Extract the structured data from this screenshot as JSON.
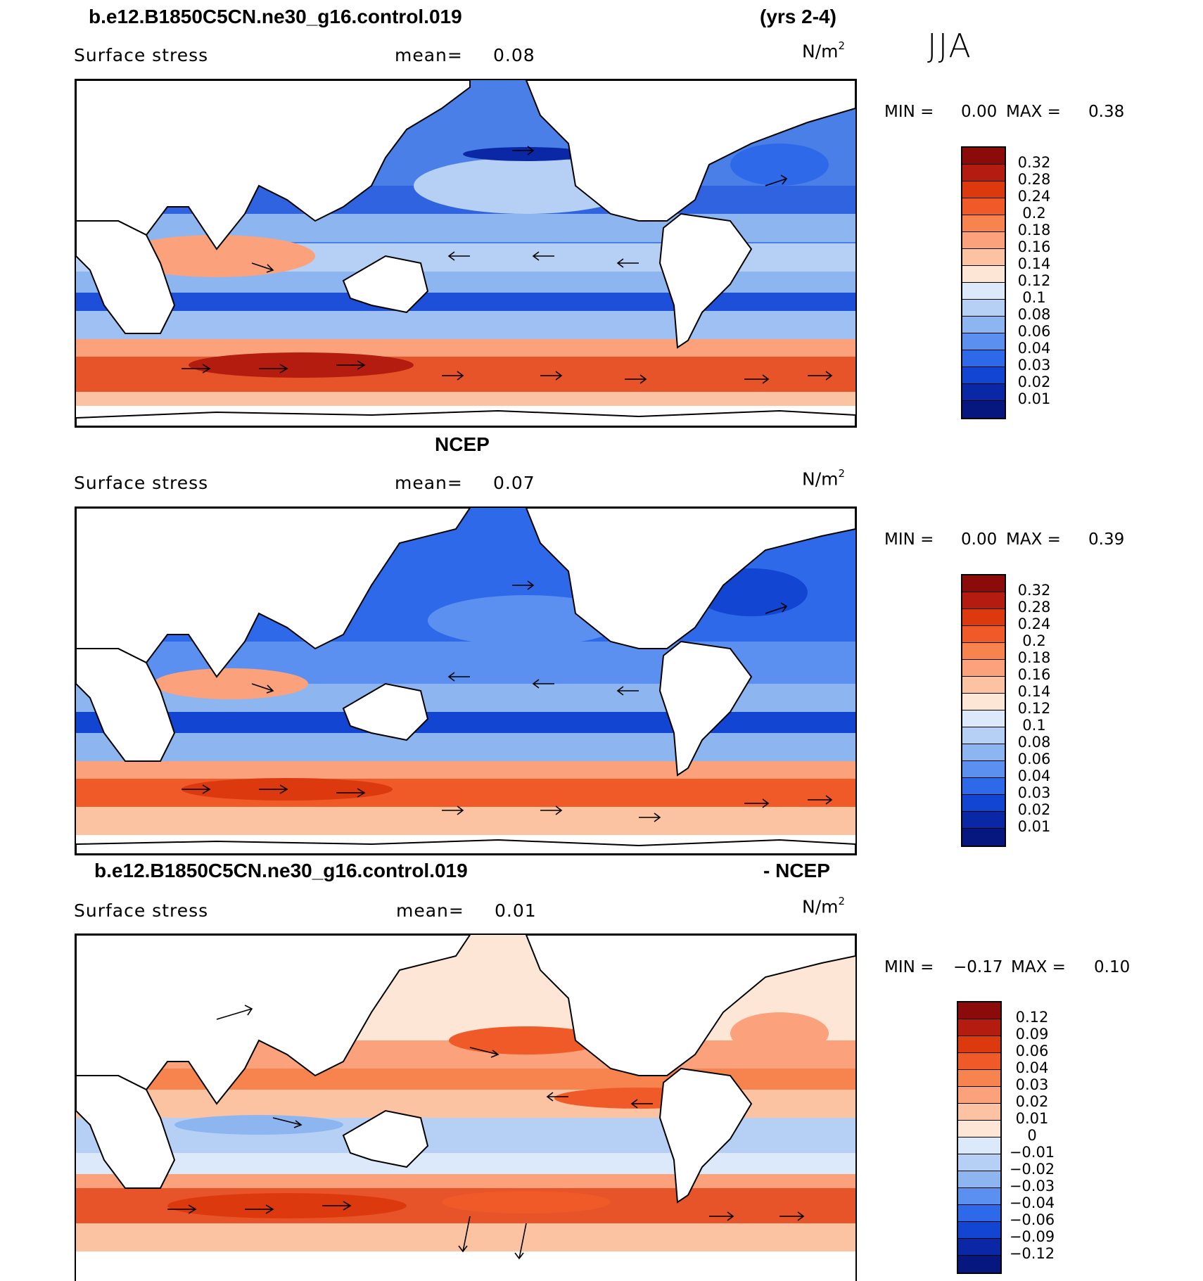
{
  "season": "JJA",
  "panels": [
    {
      "id": "model",
      "title_left": "b.e12.B1850C5CN.ne30_g16.control.019",
      "title_right": "(yrs 2-4)",
      "variable": "Surface stress",
      "mean_label": "mean=",
      "mean_value": "0.08",
      "units": "N/m",
      "units_exp": "2",
      "min_label": "MIN =",
      "min_value": "0.00",
      "max_label": "MAX =",
      "max_value": "0.38",
      "levels": [
        "0.32",
        "0.28",
        "0.24",
        "0.2",
        "0.18",
        "0.16",
        "0.14",
        "0.12",
        "0.1",
        "0.08",
        "0.06",
        "0.04",
        "0.03",
        "0.02",
        "0.01"
      ],
      "colors": [
        "#8b0a0a",
        "#b51c10",
        "#dc3a0e",
        "#f05a28",
        "#f7844f",
        "#fba27c",
        "#fcc3a3",
        "#fde6d6",
        "#dbe9fa",
        "#b6d0f5",
        "#8db5f0",
        "#5b8ff0",
        "#2e69ea",
        "#1145d2",
        "#0a28a6",
        "#061880"
      ]
    },
    {
      "id": "obs",
      "title_left": "NCEP",
      "variable": "Surface stress",
      "mean_label": "mean=",
      "mean_value": "0.07",
      "units": "N/m",
      "units_exp": "2",
      "min_label": "MIN =",
      "min_value": "0.00",
      "max_label": "MAX =",
      "max_value": "0.39",
      "levels": [
        "0.32",
        "0.28",
        "0.24",
        "0.2",
        "0.18",
        "0.16",
        "0.14",
        "0.12",
        "0.1",
        "0.08",
        "0.06",
        "0.04",
        "0.03",
        "0.02",
        "0.01"
      ],
      "colors": [
        "#8b0a0a",
        "#b51c10",
        "#dc3a0e",
        "#f05a28",
        "#f7844f",
        "#fba27c",
        "#fcc3a3",
        "#fde6d6",
        "#dbe9fa",
        "#b6d0f5",
        "#8db5f0",
        "#5b8ff0",
        "#2e69ea",
        "#1145d2",
        "#0a28a6",
        "#061880"
      ]
    },
    {
      "id": "diff",
      "title_left": "b.e12.B1850C5CN.ne30_g16.control.019",
      "title_right": "- NCEP",
      "variable": "Surface stress",
      "mean_label": "mean=",
      "mean_value": "0.01",
      "units": "N/m",
      "units_exp": "2",
      "min_label": "MIN =",
      "min_value": "−0.17",
      "max_label": "MAX =",
      "max_value": "0.10",
      "levels": [
        "0.12",
        "0.09",
        "0.06",
        "0.04",
        "0.03",
        "0.02",
        "0.01",
        "0",
        "−0.01",
        "−0.02",
        "−0.03",
        "−0.04",
        "−0.06",
        "−0.09",
        "−0.12"
      ],
      "colors": [
        "#8b0a0a",
        "#b51c10",
        "#dc3a0e",
        "#f05a28",
        "#f7844f",
        "#fba27c",
        "#fcc3a3",
        "#fde6d6",
        "#dbe9fa",
        "#b6d0f5",
        "#8db5f0",
        "#5b8ff0",
        "#2e69ea",
        "#1145d2",
        "#0a28a6",
        "#061880"
      ]
    }
  ]
}
